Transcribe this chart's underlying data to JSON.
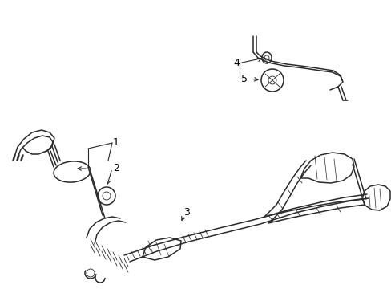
{
  "background_color": "#ffffff",
  "line_color": "#2a2a2a",
  "label_color": "#000000",
  "fig_width": 4.89,
  "fig_height": 3.6,
  "dpi": 100,
  "lw": 1.1,
  "lw_thin": 0.6,
  "lw_thick": 1.4
}
